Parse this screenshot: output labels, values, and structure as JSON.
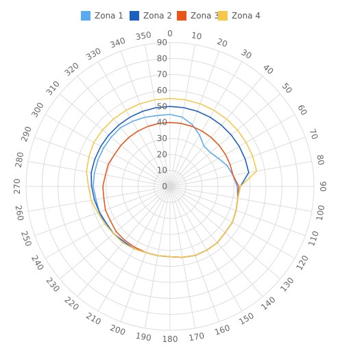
{
  "chart_data": {
    "type": "line",
    "subtype": "polar",
    "title": "",
    "legend_position": "top",
    "radial_axis": {
      "range": [
        0,
        90
      ],
      "tick_step": 10,
      "tick_labels": [
        "0",
        "10",
        "20",
        "30",
        "40",
        "50",
        "60",
        "70",
        "80",
        "90"
      ]
    },
    "angular_axis": {
      "range": [
        0,
        360
      ],
      "tick_step": 10,
      "direction": "clockwise",
      "zero": "top",
      "tick_labels": [
        "0",
        "10",
        "20",
        "30",
        "40",
        "50",
        "60",
        "70",
        "80",
        "90",
        "100",
        "110",
        "120",
        "130",
        "140",
        "150",
        "160",
        "170",
        "180",
        "190",
        "200",
        "210",
        "220",
        "230",
        "240",
        "250",
        "260",
        "270",
        "280",
        "290",
        "300",
        "310",
        "320",
        "330",
        "340",
        "350"
      ]
    },
    "grid": true,
    "series": [
      {
        "name": "Zona 1",
        "color": "#5aaaf0",
        "theta": [
          0,
          10,
          20,
          30,
          40,
          50,
          60,
          70,
          80,
          90,
          100,
          110,
          120,
          130,
          140,
          150,
          160,
          170,
          180,
          190,
          200,
          210,
          220,
          230,
          240,
          250,
          260,
          270,
          280,
          290,
          300,
          310,
          320,
          330,
          340,
          350
        ],
        "r": [
          45,
          44,
          41,
          37,
          33,
          33,
          35,
          38,
          40,
          42,
          43,
          44,
          45,
          45,
          46,
          46,
          46,
          45,
          44,
          44,
          44,
          45,
          46,
          46,
          47,
          47,
          47,
          48,
          48,
          48,
          48,
          48,
          48,
          47,
          46,
          45
        ]
      },
      {
        "name": "Zona 2",
        "color": "#1c5fc2",
        "theta": [
          0,
          10,
          20,
          30,
          40,
          50,
          60,
          70,
          80,
          90,
          100,
          110,
          120,
          130,
          140,
          150,
          160,
          170,
          180,
          190,
          200,
          210,
          220,
          230,
          240,
          250,
          260,
          270,
          280,
          290,
          300,
          310,
          320,
          330,
          340,
          350
        ],
        "r": [
          50,
          50,
          50,
          50,
          50,
          50,
          50,
          50,
          50,
          44,
          43,
          44,
          45,
          45,
          46,
          46,
          46,
          45,
          44,
          44,
          44,
          45,
          45,
          46,
          46,
          47,
          48,
          49,
          50,
          50,
          50,
          50,
          50,
          50,
          50,
          50
        ]
      },
      {
        "name": "Zona 3",
        "color": "#e8571a",
        "theta": [
          0,
          10,
          20,
          30,
          40,
          50,
          60,
          70,
          80,
          90,
          100,
          110,
          120,
          130,
          140,
          150,
          160,
          170,
          180,
          190,
          200,
          210,
          220,
          230,
          240,
          250,
          260,
          270,
          280,
          290,
          300,
          310,
          320,
          330,
          340,
          350
        ],
        "r": [
          40,
          40,
          40,
          40,
          40,
          40,
          40,
          40,
          40,
          43,
          43,
          44,
          45,
          45,
          46,
          46,
          46,
          45,
          44,
          44,
          44,
          44,
          44,
          44,
          43,
          43,
          42,
          42,
          41,
          41,
          40,
          40,
          40,
          40,
          40,
          40
        ]
      },
      {
        "name": "Zona 4",
        "color": "#f5c84c",
        "theta": [
          0,
          10,
          20,
          30,
          40,
          50,
          60,
          70,
          80,
          90,
          100,
          110,
          120,
          130,
          140,
          150,
          160,
          170,
          180,
          190,
          200,
          210,
          220,
          230,
          240,
          250,
          260,
          270,
          280,
          290,
          300,
          310,
          320,
          330,
          340,
          350
        ],
        "r": [
          55,
          55,
          55,
          55,
          55,
          55,
          55,
          55,
          55,
          44,
          43,
          44,
          45,
          45,
          46,
          46,
          46,
          45,
          44,
          44,
          44,
          45,
          46,
          46,
          47,
          48,
          50,
          51,
          53,
          54,
          55,
          55,
          55,
          55,
          55,
          55
        ]
      }
    ]
  }
}
